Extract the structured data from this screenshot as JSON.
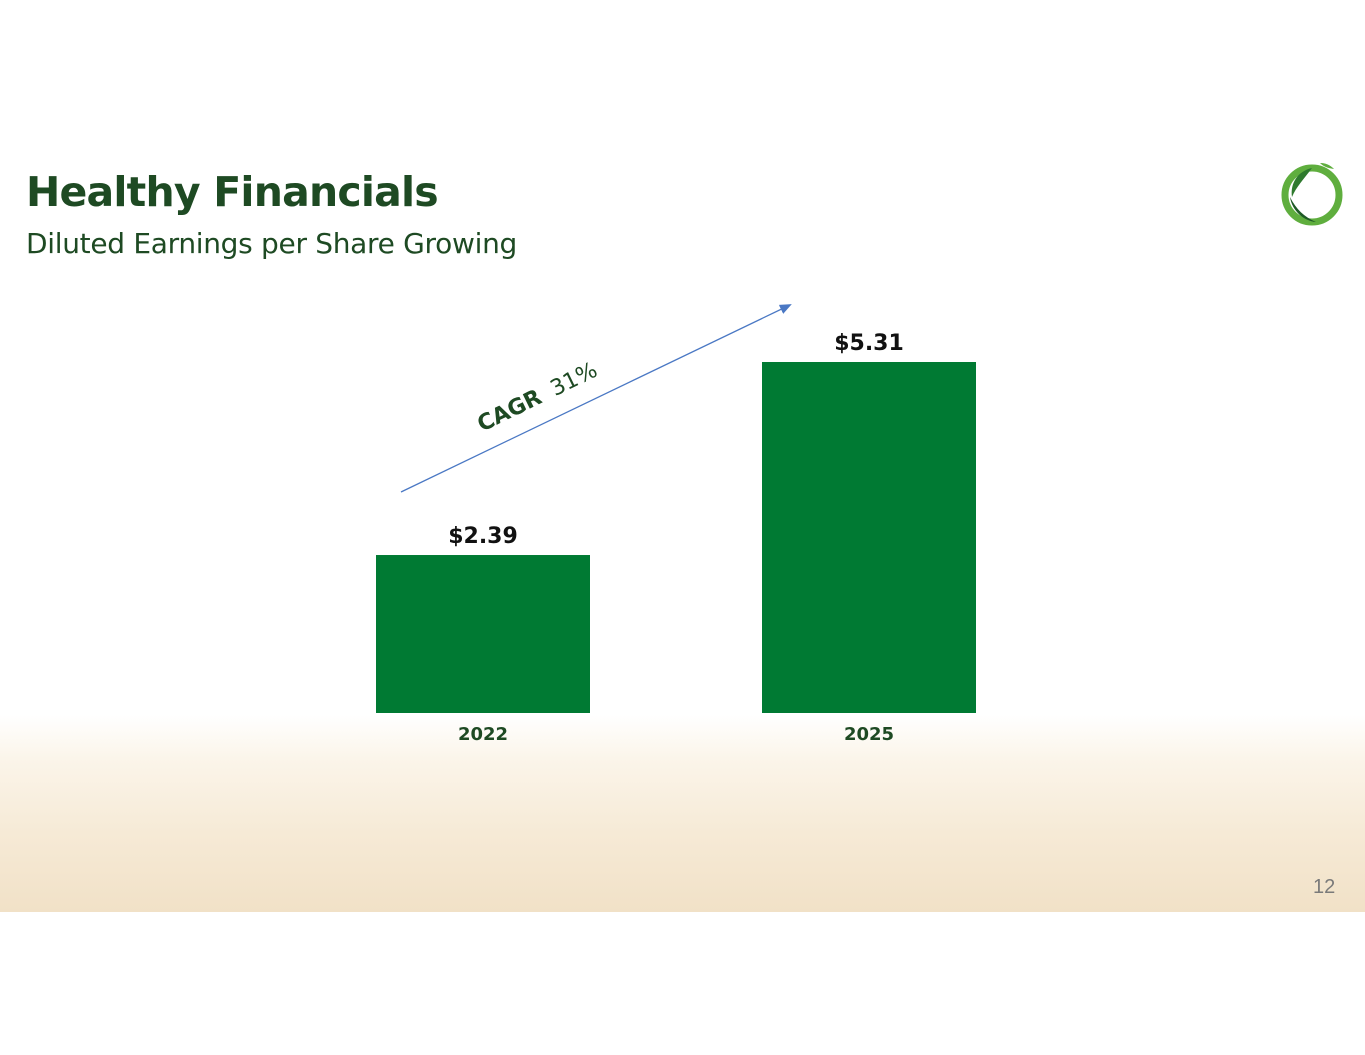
{
  "header": {
    "title": "Healthy Financials",
    "subtitle": "Diluted Earnings per Share Growing"
  },
  "logo": {
    "icon": "leaf-circle-logo"
  },
  "annotation": {
    "bold": "CAGR",
    "value": "31%"
  },
  "footer": {
    "page_number": "12"
  },
  "colors": {
    "bar": "#007a33",
    "title": "#1e4a23",
    "arrow": "#4a78c4",
    "label": "#111111"
  },
  "chart_data": {
    "type": "bar",
    "title": "",
    "xlabel": "",
    "ylabel": "",
    "categories": [
      "2022",
      "2025"
    ],
    "values": [
      2.39,
      5.31
    ],
    "data_labels": [
      "$2.39",
      "$5.31"
    ],
    "ylim": [
      0,
      5.9
    ],
    "grid": false,
    "legend": "none",
    "annotations": [
      "CAGR 31%"
    ]
  }
}
